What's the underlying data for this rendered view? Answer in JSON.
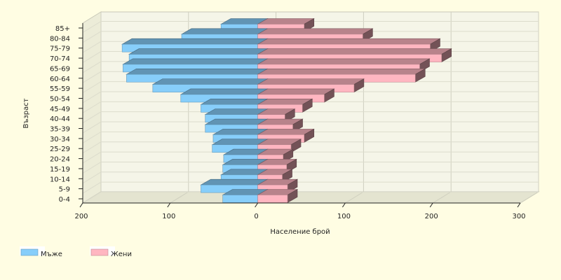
{
  "chart_data": {
    "type": "bar",
    "orientation": "horizontal",
    "style": "population-pyramid-3d",
    "ylabel": "Възраст",
    "xlabel": "Население брой",
    "categories": [
      "0-4",
      "5-9",
      "10-14",
      "15-19",
      "20-24",
      "25-29",
      "30-34",
      "35-39",
      "40-44",
      "45-49",
      "50-54",
      "55-59",
      "60-64",
      "65-69",
      "70-74",
      "75-79",
      "80-84",
      "85+"
    ],
    "series": [
      {
        "name": "Мъже",
        "color": "#87cefa",
        "side": "left",
        "values": [
          40,
          65,
          42,
          40,
          39,
          52,
          51,
          60,
          60,
          65,
          88,
          120,
          150,
          154,
          147,
          155,
          87,
          42
        ]
      },
      {
        "name": "Жени",
        "color": "#ffb6c1",
        "side": "right",
        "values": [
          34,
          34,
          28,
          33,
          29,
          38,
          53,
          40,
          31,
          51,
          76,
          110,
          180,
          185,
          210,
          197,
          120,
          53
        ]
      }
    ],
    "x_ticks": [
      "200",
      "100",
      "0",
      "100",
      "200",
      "300"
    ],
    "xlim": [
      -200,
      300
    ],
    "grid": true,
    "legend_position": "bottom-left"
  }
}
